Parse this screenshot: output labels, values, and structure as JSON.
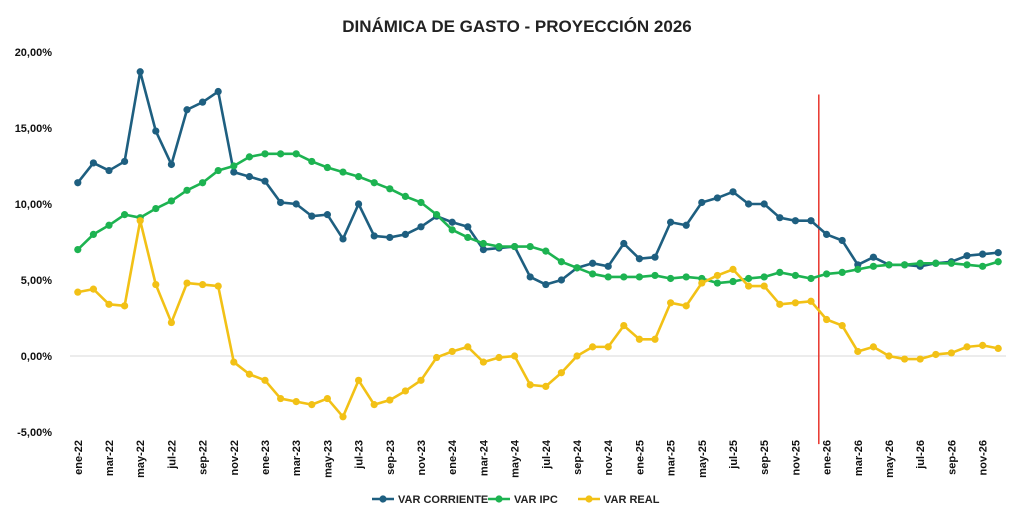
{
  "chart_data": {
    "type": "line",
    "title": "DINÁMICA DE GASTO - PROYECCIÓN 2026",
    "xlabel": "",
    "ylabel": "",
    "ylim": [
      -5,
      20
    ],
    "y_ticks": [
      -5,
      0,
      5,
      10,
      15,
      20
    ],
    "y_tick_labels": [
      "-5,00%",
      "0,00%",
      "5,00%",
      "10,00%",
      "15,00%",
      "20,00%"
    ],
    "grid": "horizontal",
    "legend_position": "bottom-center",
    "x": [
      "ene-22",
      "feb-22",
      "mar-22",
      "abr-22",
      "may-22",
      "jun-22",
      "jul-22",
      "ago-22",
      "sep-22",
      "oct-22",
      "nov-22",
      "dic-22",
      "ene-23",
      "feb-23",
      "mar-23",
      "abr-23",
      "may-23",
      "jun-23",
      "jul-23",
      "ago-23",
      "sep-23",
      "oct-23",
      "nov-23",
      "dic-23",
      "ene-24",
      "feb-24",
      "mar-24",
      "abr-24",
      "may-24",
      "jun-24",
      "jul-24",
      "ago-24",
      "sep-24",
      "oct-24",
      "nov-24",
      "dic-24",
      "ene-25",
      "feb-25",
      "mar-25",
      "abr-25",
      "may-25",
      "jun-25",
      "jul-25",
      "ago-25",
      "sep-25",
      "oct-25",
      "nov-25",
      "dic-25",
      "ene-26",
      "feb-26",
      "mar-26",
      "abr-26",
      "may-26",
      "jun-26",
      "jul-26",
      "ago-26",
      "sep-26",
      "oct-26",
      "nov-26",
      "dic-26"
    ],
    "x_tick_labels": [
      "ene-22",
      "mar-22",
      "may-22",
      "jul-22",
      "sep-22",
      "nov-22",
      "ene-23",
      "mar-23",
      "may-23",
      "jul-23",
      "sep-23",
      "nov-23",
      "ene-24",
      "mar-24",
      "may-24",
      "jul-24",
      "sep-24",
      "nov-24",
      "ene-25",
      "mar-25",
      "may-25",
      "jul-25",
      "sep-25",
      "nov-25",
      "ene-26",
      "mar-26",
      "may-26",
      "jul-26",
      "sep-26",
      "nov-26"
    ],
    "vertical_marker": {
      "at_index": 47.5,
      "color": "#e8342c",
      "ymin": -5.8,
      "ymax": 17.2
    },
    "series": [
      {
        "name": "VAR CORRIENTE",
        "color": "#1e5f80",
        "values": [
          11.4,
          12.7,
          12.2,
          12.8,
          18.7,
          14.8,
          12.6,
          16.2,
          16.7,
          17.4,
          12.1,
          11.8,
          11.5,
          10.1,
          10.0,
          9.2,
          9.3,
          7.7,
          10.0,
          7.9,
          7.8,
          8.0,
          8.5,
          9.2,
          8.8,
          8.5,
          7.0,
          7.1,
          7.2,
          5.2,
          4.7,
          5.0,
          5.8,
          6.1,
          5.9,
          7.4,
          6.4,
          6.5,
          8.8,
          8.6,
          10.1,
          10.4,
          10.8,
          10.0,
          10.0,
          9.1,
          8.9,
          8.9,
          8.0,
          7.6,
          6.0,
          6.5,
          6.0,
          6.0,
          5.9,
          6.1,
          6.2,
          6.6,
          6.7,
          6.8
        ]
      },
      {
        "name": "VAR IPC",
        "color": "#1db351",
        "values": [
          7.0,
          8.0,
          8.6,
          9.3,
          9.1,
          9.7,
          10.2,
          10.9,
          11.4,
          12.2,
          12.5,
          13.1,
          13.3,
          13.3,
          13.3,
          12.8,
          12.4,
          12.1,
          11.8,
          11.4,
          11.0,
          10.5,
          10.1,
          9.3,
          8.3,
          7.8,
          7.4,
          7.2,
          7.2,
          7.2,
          6.9,
          6.2,
          5.8,
          5.4,
          5.2,
          5.2,
          5.2,
          5.3,
          5.1,
          5.2,
          5.1,
          4.8,
          4.9,
          5.1,
          5.2,
          5.5,
          5.3,
          5.1,
          5.4,
          5.5,
          5.7,
          5.9,
          6.0,
          6.0,
          6.1,
          6.1,
          6.1,
          6.0,
          5.9,
          6.2
        ]
      },
      {
        "name": "VAR REAL",
        "color": "#f2c116",
        "values": [
          4.2,
          4.4,
          3.4,
          3.3,
          8.9,
          4.7,
          2.2,
          4.8,
          4.7,
          4.6,
          -0.4,
          -1.2,
          -1.6,
          -2.8,
          -3.0,
          -3.2,
          -2.8,
          -4.0,
          -1.6,
          -3.2,
          -2.9,
          -2.3,
          -1.6,
          -0.1,
          0.3,
          0.6,
          -0.4,
          -0.1,
          0.0,
          -1.9,
          -2.0,
          -1.1,
          0.0,
          0.6,
          0.6,
          2.0,
          1.1,
          1.1,
          3.5,
          3.3,
          4.8,
          5.3,
          5.7,
          4.6,
          4.6,
          3.4,
          3.5,
          3.6,
          2.4,
          2.0,
          0.3,
          0.6,
          0.0,
          -0.2,
          -0.2,
          0.1,
          0.2,
          0.6,
          0.7,
          0.5
        ]
      }
    ]
  }
}
